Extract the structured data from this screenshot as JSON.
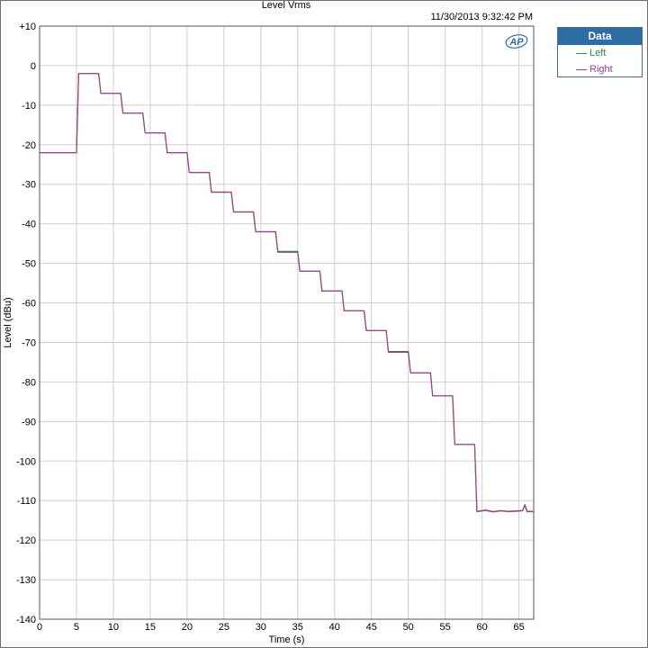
{
  "chart_title": "Level Vrms",
  "timestamp": "11/30/2013 9:32:42 PM",
  "legend": {
    "title": "Data",
    "entries": [
      {
        "label": "Left",
        "color": "#2e8b3e"
      },
      {
        "label": "Right",
        "color": "#a0408f"
      }
    ]
  },
  "logo_text": "AP",
  "chart_data": {
    "type": "line",
    "title": "Level Vrms",
    "xlabel": "Time (s)",
    "ylabel": "Level (dBu)",
    "xlim": [
      0,
      67
    ],
    "ylim": [
      -140,
      10
    ],
    "grid": true,
    "legend_position": "outside-right",
    "x_ticks": [
      0,
      5,
      10,
      15,
      20,
      25,
      30,
      35,
      40,
      45,
      50,
      55,
      60,
      65
    ],
    "y_ticks": [
      10,
      0,
      -10,
      -20,
      -30,
      -40,
      -50,
      -60,
      -70,
      -80,
      -90,
      -100,
      -110,
      -120,
      -130,
      -140
    ],
    "y_tick_labels": [
      "+10",
      "0",
      "-10",
      "-20",
      "-30",
      "-40",
      "-50",
      "-60",
      "-70",
      "-80",
      "-90",
      "-100",
      "-110",
      "-120",
      "-130",
      "-140"
    ],
    "series": [
      {
        "name": "Left",
        "color": "#2e8b3e",
        "x": [
          0,
          5.0,
          5.3,
          8.0,
          8.3,
          11.0,
          11.3,
          14.0,
          14.3,
          17.0,
          17.3,
          20.0,
          20.3,
          23.0,
          23.3,
          26.0,
          26.3,
          29.0,
          29.3,
          32.0,
          32.3,
          35.0,
          35.3,
          38.0,
          38.3,
          41.0,
          41.3,
          44.0,
          44.3,
          47.0,
          47.3,
          50.0,
          50.3,
          53.0,
          53.3,
          56.0,
          56.3,
          59.0,
          59.3,
          60.5,
          61.5,
          62.5,
          63.5,
          64.5,
          65.5,
          65.8,
          66.1,
          67.0
        ],
        "y": [
          -22,
          -22,
          -2,
          -2,
          -7,
          -7,
          -12,
          -12,
          -17,
          -17,
          -22,
          -22,
          -27,
          -27,
          -32,
          -32,
          -37,
          -37,
          -42,
          -42,
          -47,
          -47,
          -52,
          -52,
          -57,
          -57,
          -62,
          -62,
          -67,
          -67,
          -72.3,
          -72.3,
          -77.7,
          -77.7,
          -83.5,
          -83.5,
          -95.8,
          -95.8,
          -112.8,
          -112.5,
          -112.9,
          -112.6,
          -112.8,
          -112.7,
          -112.6,
          -111.2,
          -112.8,
          -112.8
        ]
      },
      {
        "name": "Right",
        "color": "#a0408f",
        "x": [
          0,
          5.0,
          5.3,
          8.0,
          8.3,
          11.0,
          11.3,
          14.0,
          14.3,
          17.0,
          17.3,
          20.0,
          20.3,
          23.0,
          23.3,
          26.0,
          26.3,
          29.0,
          29.3,
          32.0,
          32.3,
          35.0,
          35.3,
          38.0,
          38.3,
          41.0,
          41.3,
          44.0,
          44.3,
          47.0,
          47.3,
          50.0,
          50.3,
          53.0,
          53.3,
          56.0,
          56.3,
          59.0,
          59.3,
          60.5,
          61.5,
          62.5,
          63.5,
          64.5,
          65.5,
          65.8,
          66.1,
          67.0
        ],
        "y": [
          -22,
          -22,
          -2,
          -2,
          -7,
          -7,
          -12,
          -12,
          -17,
          -17,
          -22,
          -22,
          -27,
          -27,
          -32,
          -32,
          -37,
          -37,
          -42,
          -42,
          -47.2,
          -47.2,
          -52,
          -52,
          -57,
          -57,
          -62,
          -62,
          -67,
          -67,
          -72.5,
          -72.5,
          -77.7,
          -77.7,
          -83.5,
          -83.5,
          -95.8,
          -95.8,
          -112.7,
          -112.4,
          -112.8,
          -112.5,
          -112.7,
          -112.6,
          -112.5,
          -111.0,
          -112.7,
          -112.7
        ]
      }
    ]
  }
}
